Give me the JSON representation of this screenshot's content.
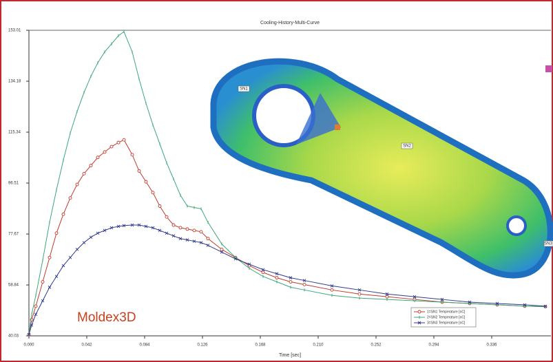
{
  "chart_data": {
    "type": "line",
    "title": "Cooling-History-Multi-Curve",
    "x_label": "Time [sec]",
    "x": [
      0,
      0.002,
      0.005,
      0.01,
      0.015,
      0.02,
      0.025,
      0.03,
      0.035,
      0.04,
      0.045,
      0.05,
      0.055,
      0.06,
      0.065,
      0.069,
      0.075,
      0.08,
      0.085,
      0.09,
      0.095,
      0.1,
      0.105,
      0.11,
      0.115,
      0.12,
      0.125,
      0.13,
      0.14,
      0.15,
      0.16,
      0.17,
      0.18,
      0.19,
      0.2,
      0.22,
      0.24,
      0.26,
      0.28,
      0.3,
      0.32,
      0.34,
      0.36,
      0.375
    ],
    "series": [
      {
        "name": "1=SN1 Temperature [oC]",
        "color": "#c0392b",
        "marker": "circle",
        "values": [
          40.5,
          46,
          51,
          60,
          69,
          78,
          85,
          91,
          96,
          100,
          103,
          106,
          108,
          110,
          111.5,
          112.5,
          107,
          101,
          97,
          93,
          88,
          84,
          81,
          80,
          79.5,
          79,
          78.5,
          76,
          72,
          69,
          66,
          63.5,
          61.5,
          60,
          59,
          57,
          55.5,
          54.5,
          53.5,
          52.5,
          52,
          51.5,
          51,
          50.8
        ]
      },
      {
        "name": "2=SN2 Temperature [oC]",
        "color": "#3aa876",
        "marker": "tick",
        "values": [
          40.5,
          48,
          55,
          68,
          82,
          94,
          105,
          115,
          123,
          130,
          136,
          141,
          145,
          148,
          151,
          152.5,
          145,
          135,
          126,
          118,
          111,
          104,
          98,
          92,
          88,
          87.5,
          87,
          82,
          74,
          69,
          65,
          62,
          60,
          58,
          57,
          55,
          54,
          53.5,
          53,
          52.5,
          52,
          51.5,
          51,
          50.8
        ]
      },
      {
        "name": "3=SN3 Temperature [oC]",
        "color": "#2e3a8c",
        "marker": "cross",
        "values": [
          40.5,
          44,
          48,
          53,
          58,
          62,
          66,
          69,
          72,
          74.5,
          76.5,
          78,
          79,
          80,
          80.5,
          80.8,
          81,
          81,
          80.5,
          80,
          79,
          78,
          77,
          76,
          75.5,
          75,
          74.5,
          73.5,
          71,
          68.5,
          66.5,
          64.5,
          63,
          61.5,
          60.5,
          58.5,
          57,
          55.5,
          54.5,
          53.5,
          52.5,
          52,
          51.5,
          51
        ]
      }
    ],
    "xlim": [
      0,
      0.379
    ],
    "xticks": [
      {
        "value": 0,
        "label": "0.000"
      },
      0.042,
      0.084,
      0.126,
      0.168,
      {
        "value": 0.21,
        "label": "0.210"
      },
      0.252,
      0.294,
      0.336
    ],
    "ylim": [
      40.03,
      153.01
    ],
    "yticks": [
      40.03,
      58.84,
      77.67,
      96.51,
      115.34,
      134.18,
      153.01
    ],
    "legend": "lower right",
    "annotations": [
      "SN1",
      "SN2",
      "SN3"
    ],
    "watermark": "Moldex3D"
  }
}
